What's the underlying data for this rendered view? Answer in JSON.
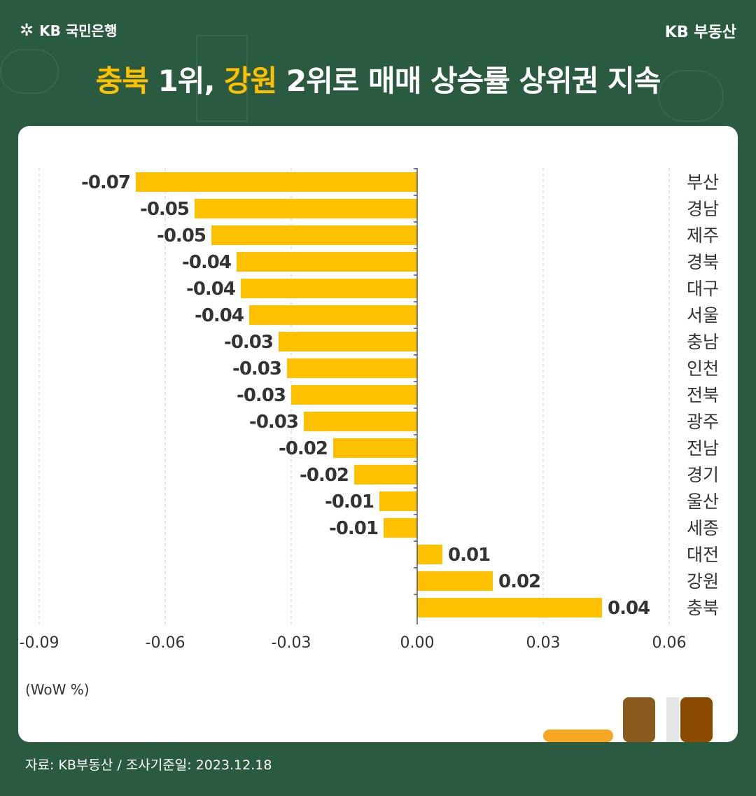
{
  "header": {
    "bank_logo_label": "KB 국민은행",
    "brand_right": "KB 부동산"
  },
  "headline": {
    "part1": "충북",
    "part2": " 1위, ",
    "part3": "강원",
    "part4": " 2위로 매매 상승률 상위권 지속"
  },
  "colors": {
    "background": "#2a5a40",
    "accent": "#ffc000",
    "bar": "#ffc000",
    "text_dark": "#333333"
  },
  "chart_data": {
    "type": "bar",
    "orientation": "horizontal",
    "categories": [
      "부산",
      "경남",
      "제주",
      "경북",
      "대구",
      "서울",
      "충남",
      "인천",
      "전북",
      "광주",
      "전남",
      "경기",
      "울산",
      "세종",
      "대전",
      "강원",
      "충북"
    ],
    "values": [
      -0.07,
      -0.05,
      -0.05,
      -0.04,
      -0.04,
      -0.04,
      -0.03,
      -0.03,
      -0.03,
      -0.03,
      -0.02,
      -0.02,
      -0.01,
      -0.01,
      0.01,
      0.02,
      0.04
    ],
    "bar_extents": [
      -0.067,
      -0.053,
      -0.049,
      -0.043,
      -0.042,
      -0.04,
      -0.033,
      -0.031,
      -0.03,
      -0.027,
      -0.02,
      -0.015,
      -0.009,
      -0.008,
      0.006,
      0.018,
      0.044
    ],
    "xlim": [
      -0.09,
      0.06
    ],
    "xticks": [
      "-0.09",
      "-0.06",
      "-0.03",
      "0.00",
      "0.03",
      "0.06"
    ],
    "xtick_values": [
      -0.09,
      -0.06,
      -0.03,
      0.0,
      0.03,
      0.06
    ],
    "unit_label": "(WoW %)",
    "grid": true
  },
  "footer": {
    "source": "자료: KB부동산 / 조사기준일: 2023.12.18"
  }
}
